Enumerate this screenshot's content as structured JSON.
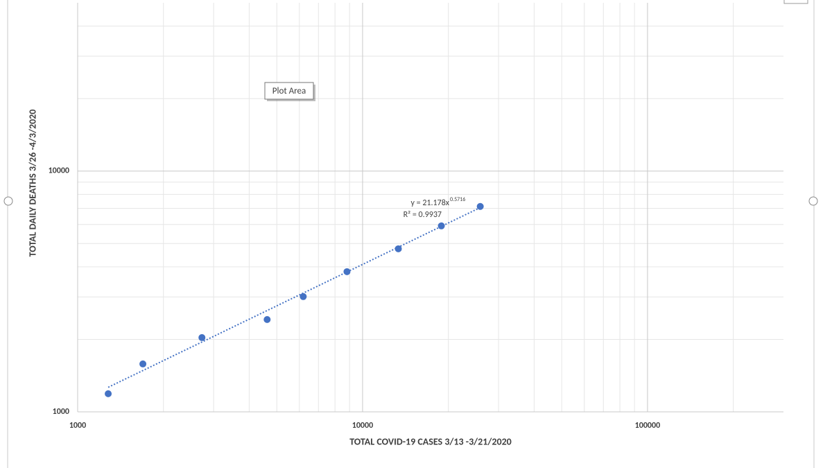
{
  "chart_data": {
    "type": "scatter",
    "x_label": "TOTAL COVID-19 CASES 3/13 -3/21/2020",
    "y_label": "TOTAL DAILY DEATHS 3/26 -4/3/2020",
    "x": [
      1280,
      1694,
      2730,
      4624,
      6190,
      8815,
      13350,
      18900,
      25880
    ],
    "values": [
      1189,
      1581,
      2034,
      2417,
      3010,
      3821,
      4756,
      5920,
      7130
    ],
    "color": "#4472c4",
    "xlim": [
      1000,
      300000
    ],
    "ylim": [
      1000,
      50000
    ],
    "xticks": [
      1000,
      10000,
      100000
    ],
    "yticks": [
      1000,
      10000
    ],
    "log_scale": true,
    "grid": true,
    "trendline": {
      "coefficient": 21.178,
      "exponent": 0.5716,
      "equation_label": "y = 21.178x",
      "exponent_label": "0.5716",
      "r2_label": "R² = 0.9937"
    },
    "tooltip": "Plot Area"
  }
}
